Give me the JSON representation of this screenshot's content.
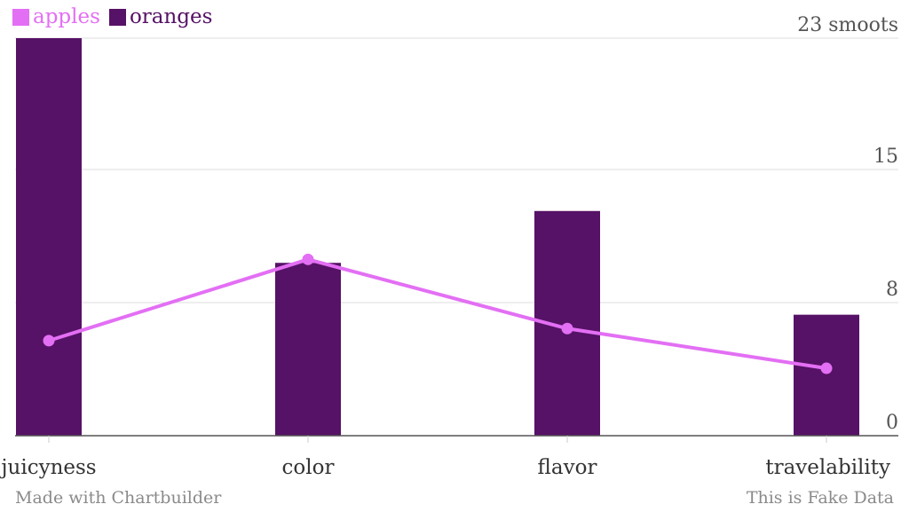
{
  "chart_data": {
    "type": "bar",
    "categories": [
      "juicyness",
      "color",
      "flavor",
      "travelability"
    ],
    "series": [
      {
        "name": "oranges",
        "type": "bar",
        "color": "#561266",
        "values": [
          23,
          10,
          13,
          7
        ]
      },
      {
        "name": "apples",
        "type": "line",
        "color": "#e36ff4",
        "values": [
          5.5,
          10.2,
          6.2,
          3.9
        ]
      }
    ],
    "yticks": [
      {
        "value": 0,
        "label": "0"
      },
      {
        "value": 7.7,
        "label": "8"
      },
      {
        "value": 15.4,
        "label": "15"
      },
      {
        "value": 23,
        "label": "23 smoots"
      }
    ],
    "ylim": [
      0,
      23
    ],
    "grid": true,
    "legend_position": "top-left",
    "ylabel": "",
    "xlabel": ""
  },
  "footer": {
    "credit": "Made with Chartbuilder",
    "source": "This is Fake Data"
  }
}
